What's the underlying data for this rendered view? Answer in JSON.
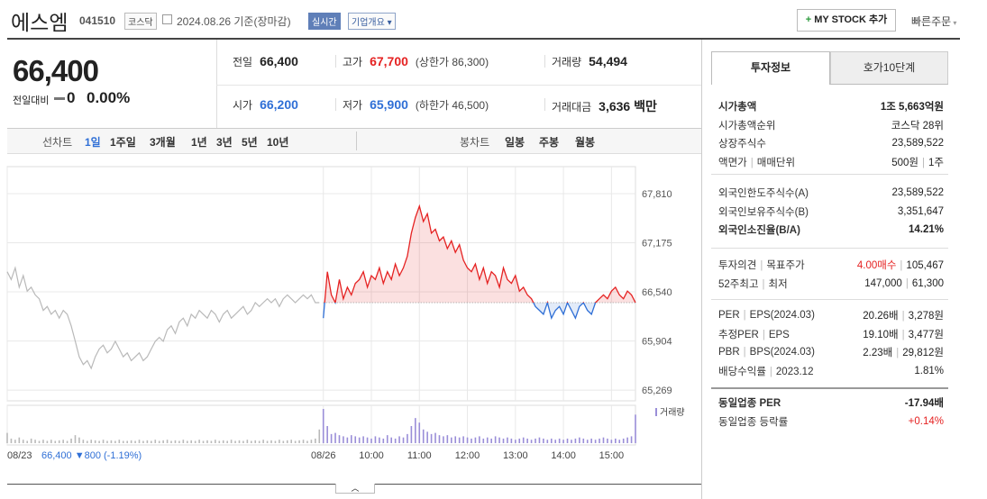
{
  "header": {
    "name": "에스엠",
    "code": "041510",
    "market": "코스닥",
    "date": "2024.08.26 기준(장마감)",
    "realtime": "실시간",
    "company": "기업개요",
    "mystock": "MY STOCK 추가",
    "quick_order": "빠른주문"
  },
  "price": {
    "current": "66,400",
    "change_label": "전일대비",
    "change": "0",
    "change_rate": "0.00%"
  },
  "summary": {
    "rows": [
      [
        {
          "label": "전일",
          "value": "66,400"
        },
        {
          "label": "고가",
          "value": "67,700",
          "note": "(상한가 86,300)"
        },
        {
          "label": "거래량",
          "value": "54,494"
        }
      ],
      [
        {
          "label": "시가",
          "value": "66,200"
        },
        {
          "label": "저가",
          "value": "65,900",
          "note": "(하한가 46,500)"
        },
        {
          "label": "거래대금",
          "value": "3,636 백만"
        }
      ]
    ]
  },
  "tabs": {
    "line_label": "선차트",
    "line": [
      "1일",
      "1주일",
      "3개월",
      "1년",
      "3년",
      "5년",
      "10년"
    ],
    "candle_label": "봉차트",
    "candle": [
      "일봉",
      "주봉",
      "월봉"
    ]
  },
  "chart": {
    "type": "line",
    "categories": [
      "08/23",
      null,
      null,
      null,
      null,
      null,
      null,
      null,
      null,
      null,
      null,
      null,
      null,
      null,
      null,
      null,
      null,
      null,
      null,
      null,
      null,
      null,
      null,
      null,
      null,
      null,
      null,
      null,
      null,
      null,
      null,
      null,
      null,
      null,
      null,
      null,
      null,
      null,
      null,
      null,
      null,
      null,
      null,
      null,
      null,
      null,
      null,
      null,
      null,
      null,
      null,
      null,
      null,
      null,
      null,
      null,
      null,
      null,
      null,
      null,
      null,
      null,
      null,
      null,
      null,
      null,
      null,
      null,
      null,
      null,
      null,
      null,
      null,
      null,
      null,
      null,
      null,
      null,
      null,
      "08/26",
      null,
      null,
      null,
      null,
      null,
      null,
      null,
      null,
      null,
      null,
      null,
      "10:00",
      null,
      null,
      null,
      null,
      null,
      null,
      null,
      null,
      null,
      null,
      null,
      "11:00",
      null,
      null,
      null,
      null,
      null,
      null,
      null,
      null,
      null,
      null,
      null,
      "12:00",
      null,
      null,
      null,
      null,
      null,
      null,
      null,
      null,
      null,
      null,
      null,
      "13:00",
      null,
      null,
      null,
      null,
      null,
      null,
      null,
      null,
      null,
      null,
      null,
      "14:00",
      null,
      null,
      null,
      null,
      null,
      null,
      null,
      null,
      null,
      null,
      null,
      "15:00",
      null,
      null,
      null,
      null,
      null,
      null
    ],
    "series": [
      {
        "color": "#b9b9b9",
        "values": [
          66800,
          66700,
          66850,
          66600,
          66750,
          66550,
          66600,
          66500,
          66450,
          66300,
          66350,
          66250,
          66300,
          66200,
          66300,
          66250,
          66100,
          65900,
          65700,
          65600,
          65650,
          65550,
          65700,
          65800,
          65850,
          65750,
          65800,
          65900,
          65800,
          65700,
          65750,
          65650,
          65700,
          65750,
          65650,
          65700,
          65800,
          65900,
          65950,
          65900,
          66050,
          66100,
          66000,
          66150,
          66200,
          66100,
          66250,
          66200,
          66300,
          66250,
          66200,
          66300,
          66250,
          66150,
          66250,
          66300,
          66200,
          66250,
          66300,
          66350,
          66250,
          66300,
          66400,
          66350,
          66400,
          66450,
          66400,
          66450,
          66350,
          66450,
          66500,
          66450,
          66400,
          66450,
          66500,
          66450,
          66500,
          66400,
          66400,
          null,
          null,
          null,
          null,
          null,
          null,
          null,
          null,
          null,
          null,
          null,
          null,
          null,
          null,
          null,
          null,
          null,
          null,
          null,
          null,
          null,
          null,
          null,
          null,
          null,
          null,
          null,
          null,
          null,
          null,
          null,
          null,
          null,
          null,
          null,
          null,
          null,
          null,
          null,
          null,
          null,
          null,
          null,
          null,
          null,
          null,
          null,
          null,
          null,
          null,
          null,
          null,
          null,
          null,
          null,
          null,
          null,
          null,
          null,
          null,
          null,
          null,
          null,
          null,
          null,
          null,
          null,
          null,
          null,
          null,
          null,
          null,
          null,
          null,
          null,
          null,
          null,
          null,
          null
        ]
      },
      {
        "color": "#e52222",
        "values": [
          null,
          null,
          null,
          null,
          null,
          null,
          null,
          null,
          null,
          null,
          null,
          null,
          null,
          null,
          null,
          null,
          null,
          null,
          null,
          null,
          null,
          null,
          null,
          null,
          null,
          null,
          null,
          null,
          null,
          null,
          null,
          null,
          null,
          null,
          null,
          null,
          null,
          null,
          null,
          null,
          null,
          null,
          null,
          null,
          null,
          null,
          null,
          null,
          null,
          null,
          null,
          null,
          null,
          null,
          null,
          null,
          null,
          null,
          null,
          null,
          null,
          null,
          null,
          null,
          null,
          null,
          null,
          null,
          null,
          null,
          null,
          null,
          null,
          null,
          null,
          null,
          null,
          null,
          null,
          66200,
          66800,
          66500,
          66400,
          66700,
          66450,
          66600,
          66500,
          66650,
          66700,
          66800,
          66600,
          66750,
          66700,
          66850,
          66650,
          66800,
          66700,
          66900,
          66750,
          66850,
          67000,
          67300,
          67500,
          67650,
          67450,
          67550,
          67300,
          67350,
          67200,
          67250,
          67100,
          67200,
          67050,
          67150,
          66950,
          66850,
          66800,
          66900,
          66700,
          66850,
          66650,
          66800,
          66750,
          66600,
          66850,
          66700,
          66650,
          66750,
          66550,
          66600,
          66500,
          66450,
          66350,
          66300,
          66250,
          66400,
          66200,
          66300,
          66350,
          66250,
          66400,
          66300,
          66200,
          66350,
          66400,
          66300,
          66250,
          66400,
          66450,
          66500,
          66450,
          66550,
          66600,
          66500,
          66450,
          66550,
          66500,
          66400
        ]
      }
    ],
    "down_color": "#2f6fd6",
    "baseline": 66400,
    "ylim": [
      65130,
      68160
    ],
    "yticks": [
      {
        "value": 67810,
        "label": "67,810"
      },
      {
        "value": 67175,
        "label": "67,175"
      },
      {
        "value": 66540,
        "label": "66,540"
      },
      {
        "value": 65904,
        "label": "65,904"
      },
      {
        "value": 65269,
        "label": "65,269"
      }
    ],
    "grid": true,
    "volume_label": "거래량",
    "volume_color": "#9a8ed8",
    "volume": [
      900,
      400,
      300,
      500,
      300,
      200,
      400,
      300,
      200,
      300,
      200,
      300,
      200,
      250,
      300,
      200,
      400,
      700,
      500,
      300,
      200,
      300,
      250,
      200,
      300,
      200,
      250,
      200,
      300,
      200,
      200,
      250,
      200,
      300,
      200,
      250,
      200,
      300,
      200,
      250,
      300,
      200,
      250,
      200,
      300,
      200,
      250,
      200,
      300,
      200,
      250,
      200,
      300,
      200,
      250,
      200,
      300,
      200,
      250,
      200,
      300,
      200,
      250,
      200,
      300,
      200,
      250,
      200,
      300,
      200,
      250,
      300,
      200,
      250,
      300,
      200,
      300,
      400,
      1200,
      3000,
      1500,
      800,
      900,
      700,
      600,
      500,
      700,
      600,
      500,
      600,
      500,
      400,
      600,
      500,
      400,
      700,
      500,
      400,
      600,
      500,
      800,
      1500,
      2200,
      1800,
      1200,
      1000,
      800,
      900,
      700,
      600,
      700,
      500,
      600,
      500,
      600,
      500,
      400,
      500,
      600,
      400,
      500,
      400,
      600,
      500,
      400,
      500,
      400,
      300,
      400,
      500,
      400,
      300,
      400,
      500,
      400,
      300,
      400,
      300,
      400,
      300,
      400,
      300,
      400,
      500,
      400,
      300,
      400,
      300,
      400,
      500,
      400,
      300,
      400,
      300,
      400,
      500,
      600,
      2500
    ],
    "prev_summary": "66,400 ▼800 (-1.19%)"
  },
  "invest": {
    "tabs": [
      "투자정보",
      "호가10단계"
    ],
    "groups": [
      [
        {
          "label": [
            "시가총액"
          ],
          "value": [
            "1조 5,663억원"
          ]
        },
        {
          "label": [
            "시가총액순위"
          ],
          "value": [
            "코스닥 28위"
          ]
        },
        {
          "label": [
            "상장주식수"
          ],
          "value": [
            "23,589,522"
          ]
        },
        {
          "label": [
            "액면가",
            "매매단위"
          ],
          "value": [
            "500원",
            "1주"
          ]
        }
      ],
      [
        {
          "label": [
            "외국인한도주식수(A)"
          ],
          "value": [
            "23,589,522"
          ]
        },
        {
          "label": [
            "외국인보유주식수(B)"
          ],
          "value": [
            "3,351,647"
          ]
        },
        {
          "label": [
            "외국인소진율(B/A)"
          ],
          "value": [
            "14.21%"
          ]
        }
      ],
      [
        {
          "label": [
            "투자의견",
            "목표주가"
          ],
          "value": [
            "4.00매수",
            "105,467"
          ]
        },
        {
          "label": [
            "52주최고",
            "최저"
          ],
          "value": [
            "147,000",
            "61,300"
          ]
        }
      ],
      [
        {
          "label": [
            "PER",
            "EPS(2024.03)"
          ],
          "value": [
            "20.26배",
            "3,278원"
          ]
        },
        {
          "label": [
            "추정PER",
            "EPS"
          ],
          "value": [
            "19.10배",
            "3,477원"
          ]
        },
        {
          "label": [
            "PBR",
            "BPS(2024.03)"
          ],
          "value": [
            "2.23배",
            "29,812원"
          ]
        },
        {
          "label": [
            "배당수익률",
            "2023.12"
          ],
          "value": [
            "1.81%"
          ]
        }
      ],
      [
        {
          "label": [
            "동일업종 PER"
          ],
          "value": [
            "-17.94배"
          ]
        },
        {
          "label": [
            "동일업종 등락률"
          ],
          "value": [
            "+0.14%"
          ]
        }
      ]
    ]
  }
}
